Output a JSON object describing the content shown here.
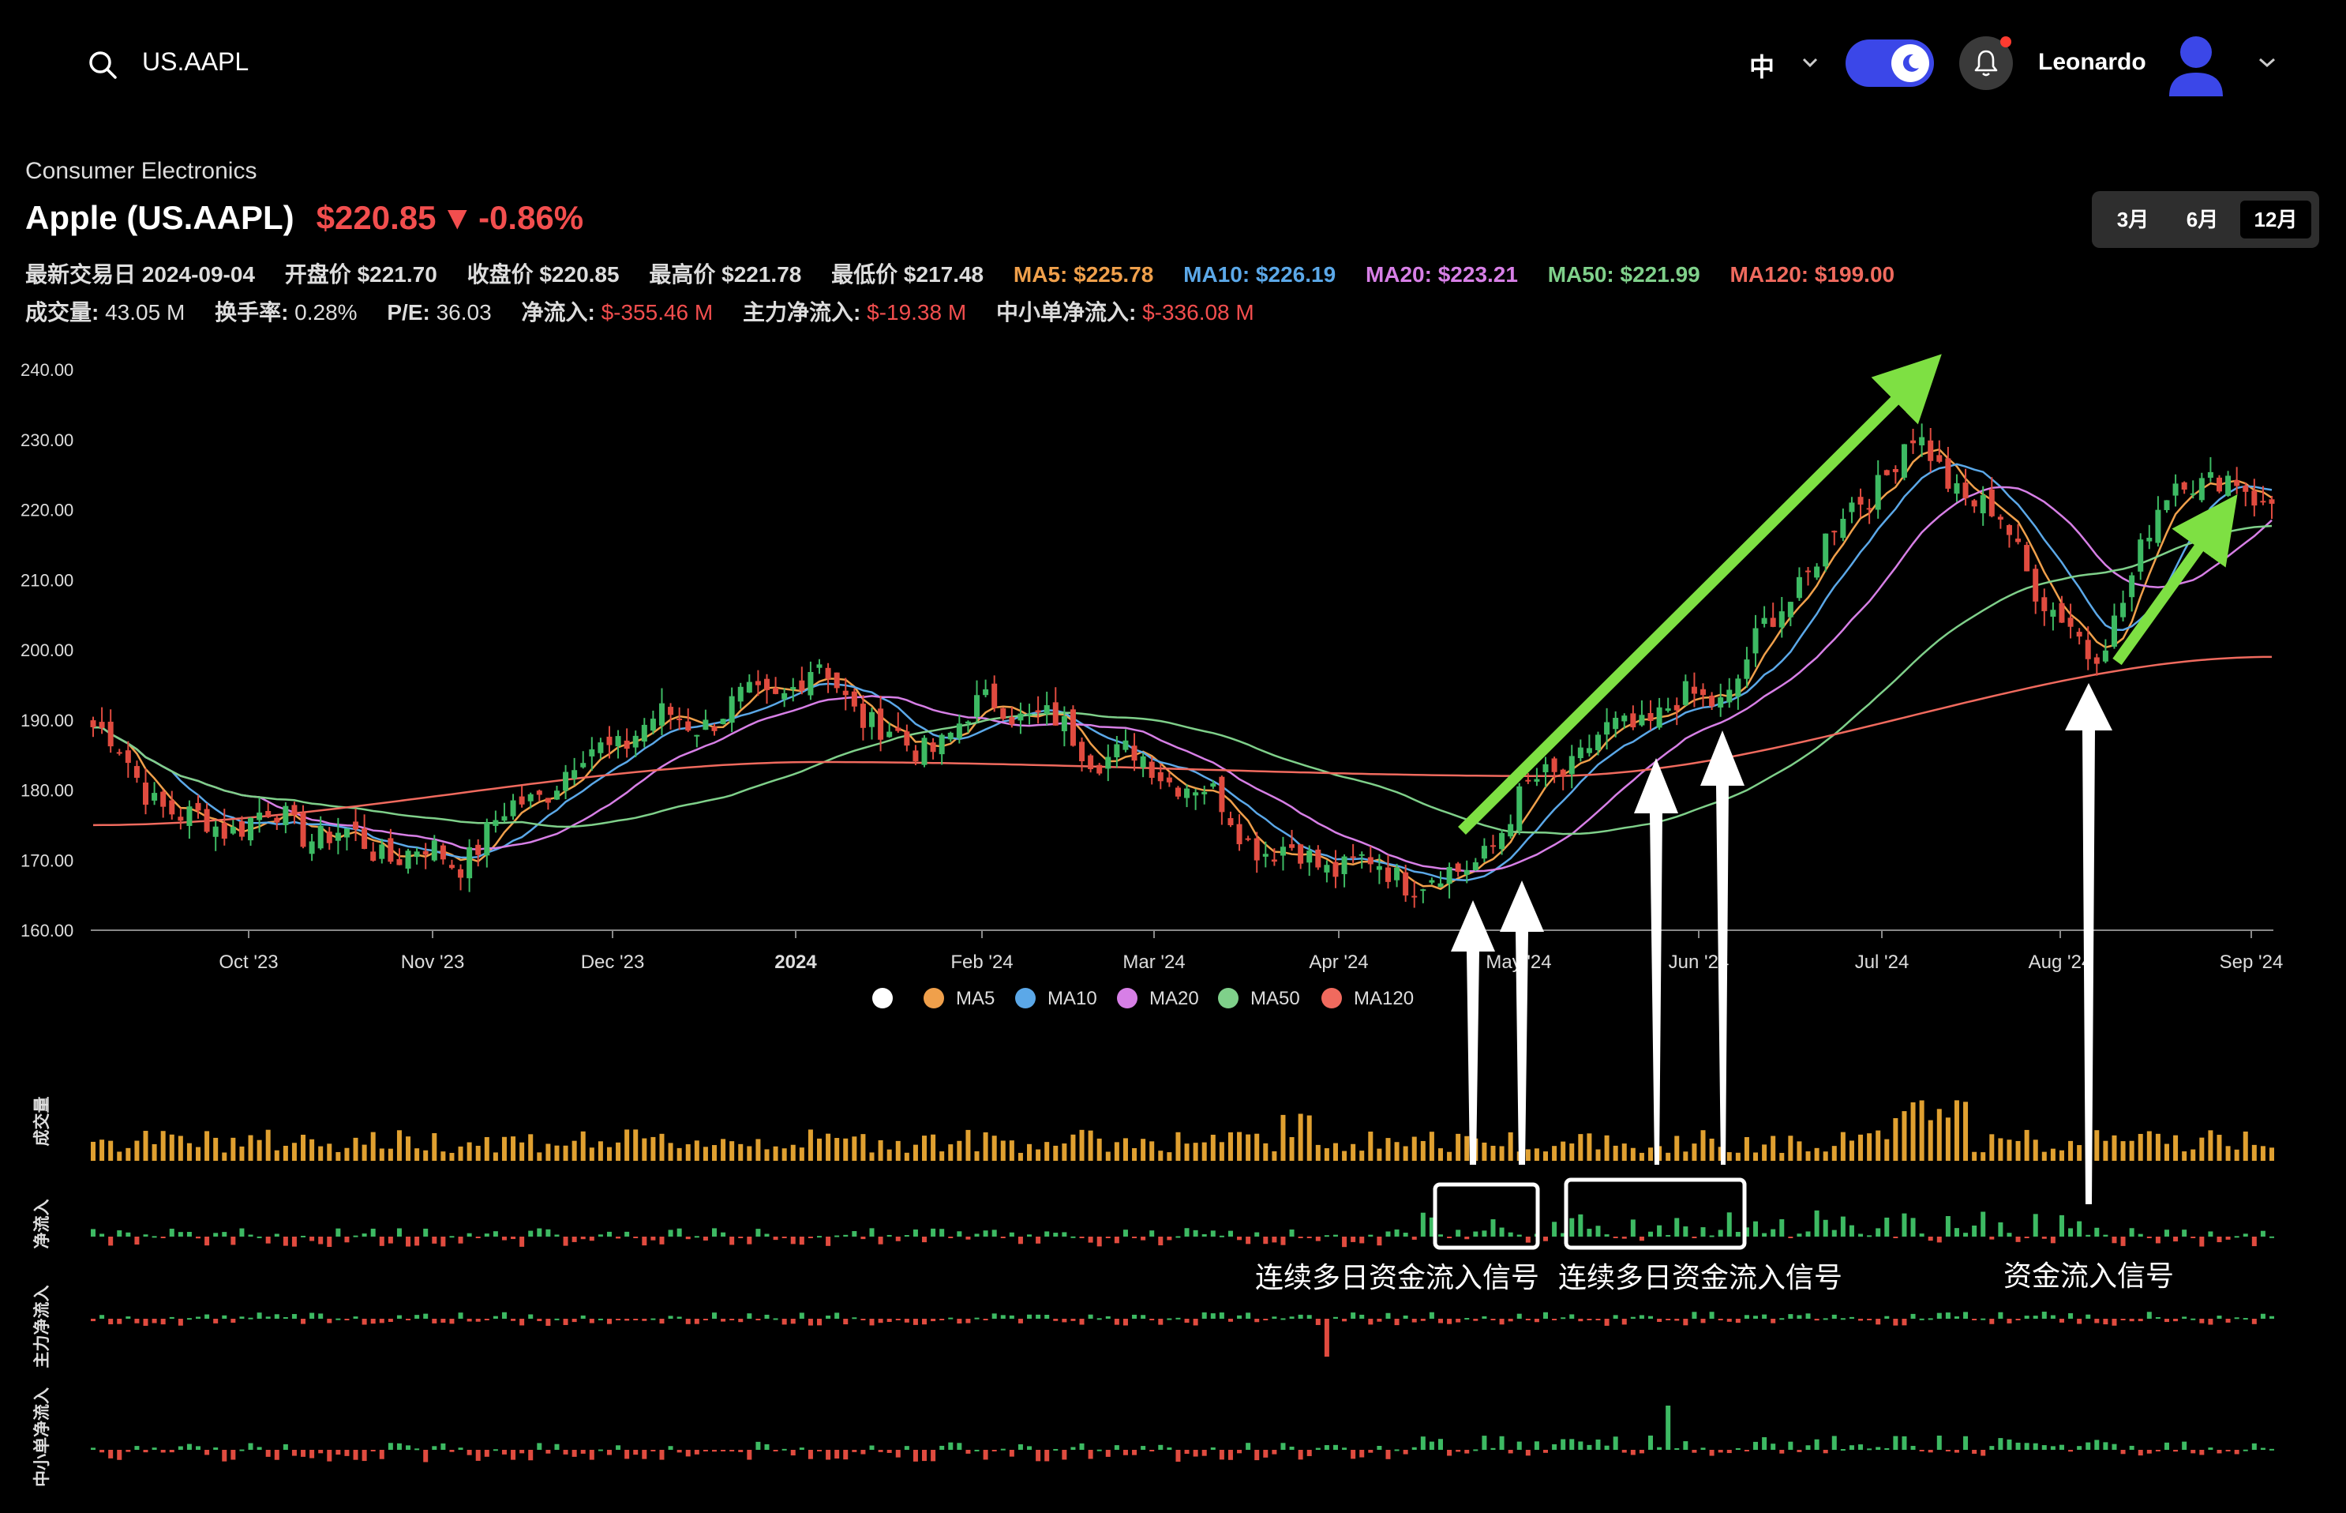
{
  "header": {
    "search_value": "US.AAPL",
    "language": "中",
    "user_name": "Leonardo"
  },
  "stock": {
    "sector": "Consumer Electronics",
    "name": "Apple (US.AAPL)",
    "price": "$220.85",
    "change": "-0.86%",
    "last_trade": "最新交易日 2024-09-04",
    "open": "开盘价 $221.70",
    "close": "收盘价 $220.85",
    "high": "最高价 $221.78",
    "low": "最低价 $217.48",
    "ma5": "MA5: $225.78",
    "ma10": "MA10: $226.19",
    "ma20": "MA20: $223.21",
    "ma50": "MA50: $221.99",
    "ma120": "MA120: $199.00",
    "volume_label": "成交量:",
    "volume_value": "43.05 M",
    "turnover_label": "换手率:",
    "turnover_value": "0.28%",
    "pe_label": "P/E:",
    "pe_value": "36.03",
    "netflow_label": "净流入:",
    "netflow_value": "$-355.46 M",
    "main_flow_label": "主力净流入:",
    "main_flow_value": "$-19.38 M",
    "small_flow_label": "中小单净流入:",
    "small_flow_value": "$-336.08 M"
  },
  "range_buttons": [
    {
      "label": "3月"
    },
    {
      "label": "6月"
    },
    {
      "label": "12月",
      "active": true
    }
  ],
  "colors": {
    "up": "#3dba63",
    "down": "#e04b3f",
    "ma5": "#f0a04b",
    "ma10": "#5ba8e8",
    "ma20": "#d77fe6",
    "ma50": "#7fd08a",
    "ma120": "#f06a5e",
    "volume": "#e0a030",
    "annotation_arrow": "#7ee043"
  },
  "chart_data": {
    "type": "candlestick",
    "ylim": [
      160,
      240
    ],
    "yticks": [
      "160.00",
      "170.00",
      "180.00",
      "190.00",
      "200.00",
      "210.00",
      "220.00",
      "230.00",
      "240.00"
    ],
    "xticks": [
      "Oct '23",
      "Nov '23",
      "Dec '23",
      "2024",
      "Feb '24",
      "Mar '24",
      "Apr '24",
      "May '24",
      "Jun '24",
      "Jul '24",
      "Aug '24",
      "Sep '24"
    ],
    "legend": [
      "",
      "MA5",
      "MA10",
      "MA20",
      "MA50",
      "MA120"
    ],
    "close_anchors": [
      {
        "month": "Sep '23",
        "value": 189
      },
      {
        "month": "Sep '23",
        "value": 175
      },
      {
        "month": "Oct '23",
        "value": 176
      },
      {
        "month": "Oct '23",
        "value": 172
      },
      {
        "month": "Nov '23",
        "value": 170
      },
      {
        "month": "Nov '23",
        "value": 181
      },
      {
        "month": "Nov '23",
        "value": 189
      },
      {
        "month": "Dec '23",
        "value": 191
      },
      {
        "month": "Dec '23",
        "value": 197
      },
      {
        "month": "2024",
        "value": 185
      },
      {
        "month": "Jan '24",
        "value": 193
      },
      {
        "month": "Feb '24",
        "value": 186
      },
      {
        "month": "Feb '24",
        "value": 182
      },
      {
        "month": "Mar '24",
        "value": 171
      },
      {
        "month": "Apr '24",
        "value": 169
      },
      {
        "month": "Apr '24",
        "value": 167
      },
      {
        "month": "May '24",
        "value": 182
      },
      {
        "month": "May '24",
        "value": 190
      },
      {
        "month": "Jun '24",
        "value": 194
      },
      {
        "month": "Jun '24",
        "value": 214
      },
      {
        "month": "Jul '24",
        "value": 230
      },
      {
        "month": "Jul '24",
        "value": 218
      },
      {
        "month": "Aug '24",
        "value": 198
      },
      {
        "month": "Aug '24",
        "value": 226
      },
      {
        "month": "Sep '24",
        "value": 220.85
      }
    ],
    "ma120_anchors": [
      {
        "month": "Sep '23",
        "value": 175
      },
      {
        "month": "Jan '24",
        "value": 184
      },
      {
        "month": "May '24",
        "value": 182
      },
      {
        "month": "Sep '24",
        "value": 199
      }
    ],
    "sub_panels": [
      "成交量",
      "净流入",
      "主力净流入",
      "中小单净流入"
    ]
  },
  "annotations": {
    "signal1": "连续多日资金流入信号",
    "signal2": "连续多日资金流入信号",
    "signal3": "资金流入信号"
  }
}
